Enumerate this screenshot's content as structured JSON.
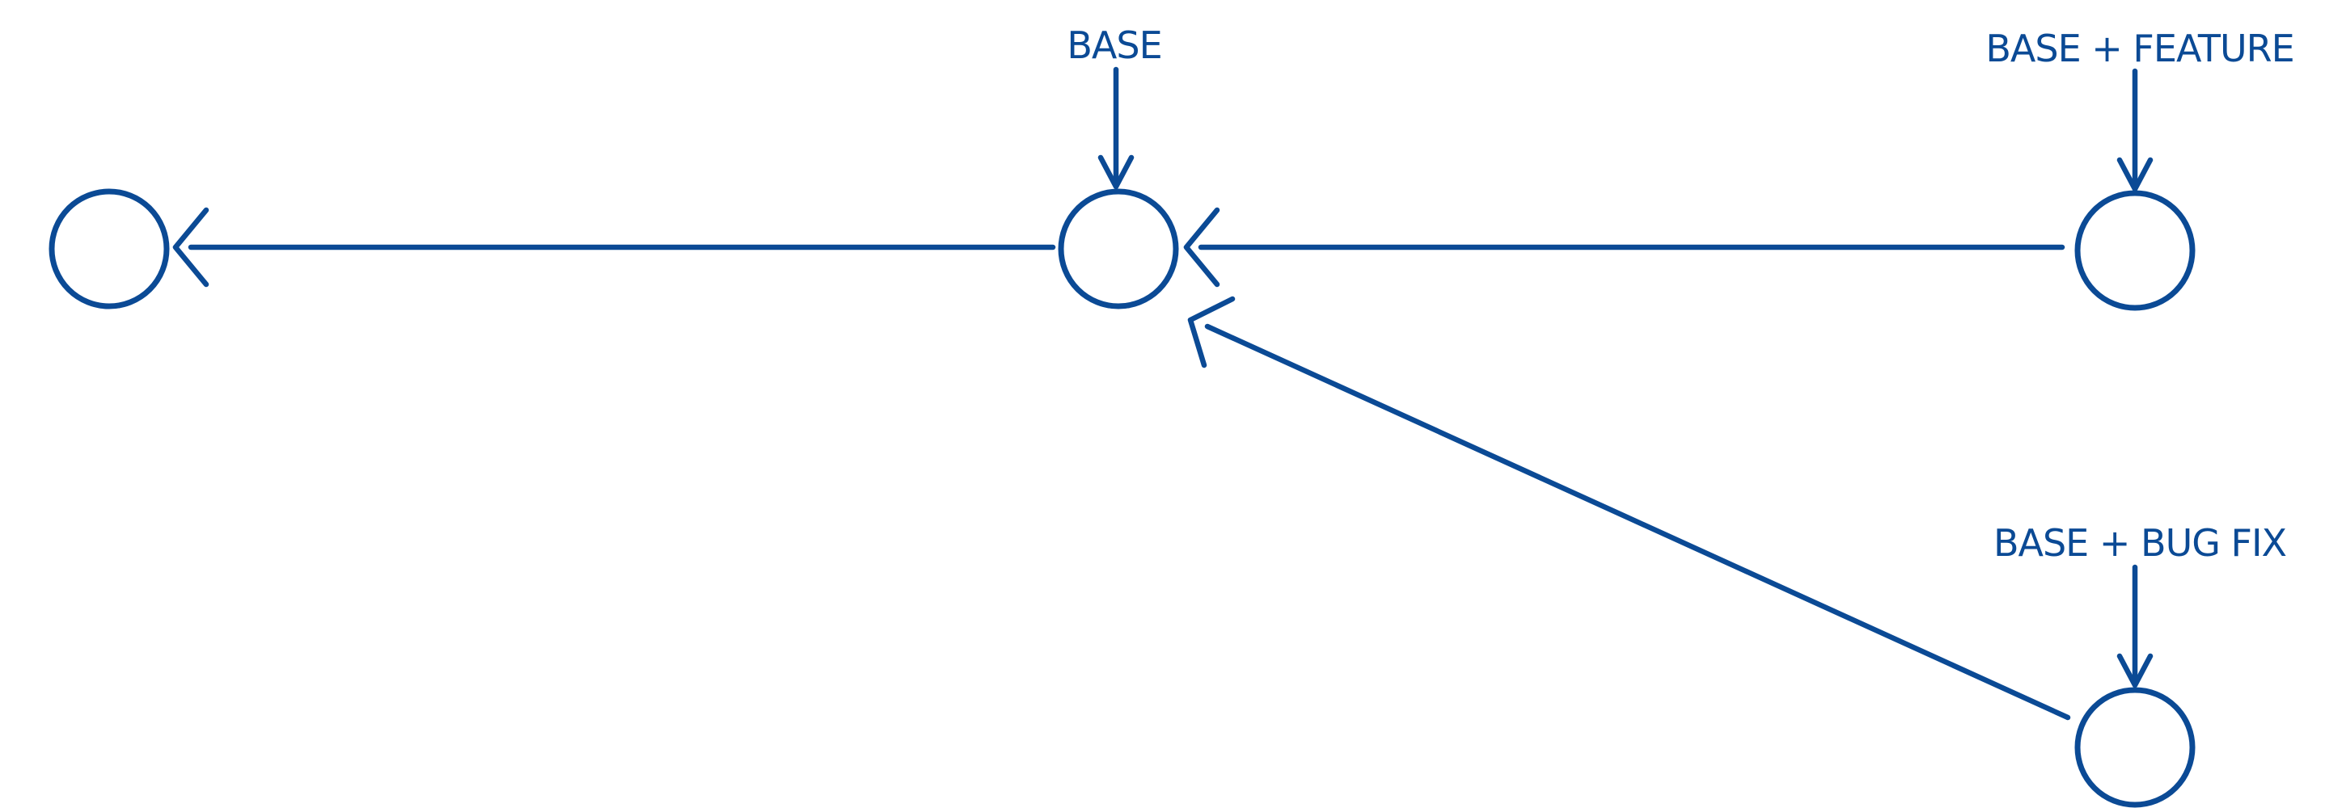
{
  "diagram": {
    "colors": {
      "ink": "#0b4a95",
      "background": "#ffffff"
    },
    "labels": {
      "base": "BASE",
      "base_feature": "BASE + FEATURE",
      "base_bugfix": "BASE + BUG FIX"
    },
    "nodes": [
      {
        "id": "commit-1"
      },
      {
        "id": "commit-base"
      },
      {
        "id": "commit-feature"
      },
      {
        "id": "commit-bugfix"
      }
    ],
    "edges": [
      {
        "from": "commit-base",
        "to": "commit-1"
      },
      {
        "from": "commit-feature",
        "to": "commit-base"
      },
      {
        "from": "commit-bugfix",
        "to": "commit-base"
      }
    ]
  }
}
